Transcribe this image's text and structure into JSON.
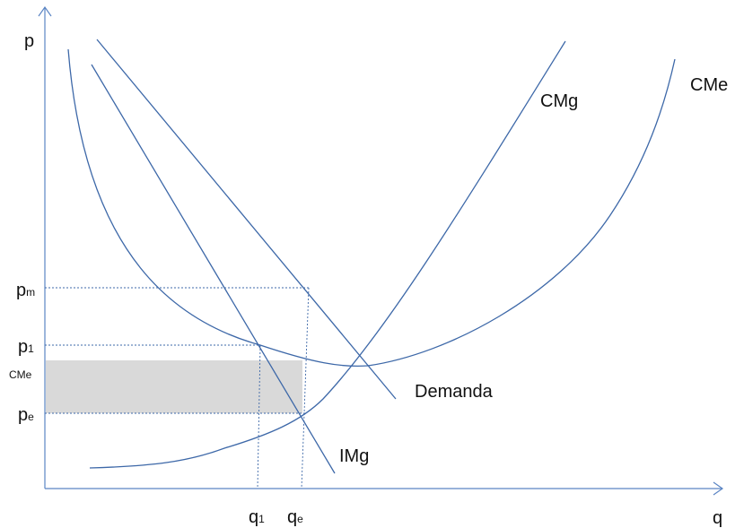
{
  "axes": {
    "y_label": "p",
    "x_label": "q"
  },
  "curves": {
    "marginal_cost": "CMg",
    "average_cost": "CMe",
    "demand": "Demanda",
    "marginal_revenue": "IMg"
  },
  "y_ticks": {
    "pm": {
      "base": "p",
      "sub": "m"
    },
    "p1": {
      "base": "p",
      "sub": "1"
    },
    "cme": "CMe",
    "pe": {
      "base": "p",
      "sub": "e"
    }
  },
  "x_ticks": {
    "q1": {
      "base": "q",
      "sub": "1"
    },
    "qe": {
      "base": "q",
      "sub": "e"
    }
  },
  "colors": {
    "curve": "#3d68a8",
    "axis": "#5b85c4",
    "shaded_area": "#d9d9d9"
  }
}
